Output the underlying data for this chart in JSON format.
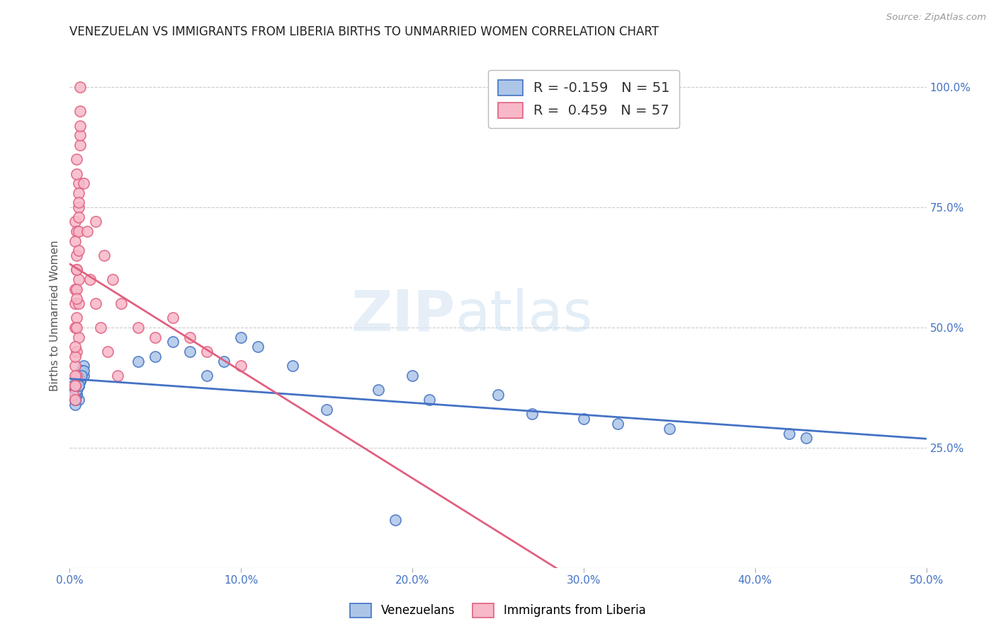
{
  "title": "VENEZUELAN VS IMMIGRANTS FROM LIBERIA BIRTHS TO UNMARRIED WOMEN CORRELATION CHART",
  "source": "Source: ZipAtlas.com",
  "ylabel": "Births to Unmarried Women",
  "watermark_zip": "ZIP",
  "watermark_atlas": "atlas",
  "blue_label": "Venezuelans",
  "pink_label": "Immigrants from Liberia",
  "blue_R": -0.159,
  "blue_N": 51,
  "pink_R": 0.459,
  "pink_N": 57,
  "blue_color": "#adc6e8",
  "pink_color": "#f7b8c8",
  "blue_line_color": "#4472c4",
  "pink_line_color": "#e06080",
  "xlim": [
    0.0,
    0.5
  ],
  "ylim": [
    0.0,
    1.05
  ],
  "xticks": [
    0.0,
    0.1,
    0.2,
    0.3,
    0.4,
    0.5
  ],
  "xtick_labels": [
    "0.0%",
    "10.0%",
    "20.0%",
    "30.0%",
    "40.0%",
    "50.0%"
  ],
  "yticks_right": [
    0.25,
    0.5,
    0.75,
    1.0
  ],
  "ytick_right_labels": [
    "25.0%",
    "50.0%",
    "75.0%",
    "100.0%"
  ],
  "background_color": "#ffffff",
  "grid_color": "#cccccc",
  "title_fontsize": 12,
  "axis_label_fontsize": 11,
  "tick_fontsize": 11,
  "blue_x": [
    0.003,
    0.005,
    0.002,
    0.008,
    0.004,
    0.006,
    0.003,
    0.007,
    0.005,
    0.004,
    0.006,
    0.003,
    0.008,
    0.005,
    0.004,
    0.006,
    0.003,
    0.007,
    0.005,
    0.004,
    0.006,
    0.003,
    0.008,
    0.005,
    0.003,
    0.006,
    0.004,
    0.007,
    0.005,
    0.003,
    0.04,
    0.05,
    0.06,
    0.08,
    0.07,
    0.09,
    0.1,
    0.11,
    0.13,
    0.15,
    0.18,
    0.2,
    0.21,
    0.25,
    0.27,
    0.3,
    0.32,
    0.35,
    0.42,
    0.43,
    0.19
  ],
  "blue_y": [
    0.37,
    0.35,
    0.38,
    0.4,
    0.36,
    0.39,
    0.34,
    0.41,
    0.38,
    0.37,
    0.4,
    0.36,
    0.42,
    0.38,
    0.37,
    0.39,
    0.35,
    0.41,
    0.38,
    0.36,
    0.39,
    0.37,
    0.41,
    0.38,
    0.36,
    0.39,
    0.37,
    0.4,
    0.38,
    0.35,
    0.43,
    0.44,
    0.47,
    0.4,
    0.45,
    0.43,
    0.48,
    0.46,
    0.42,
    0.33,
    0.37,
    0.4,
    0.35,
    0.36,
    0.32,
    0.31,
    0.3,
    0.29,
    0.28,
    0.27,
    0.1
  ],
  "pink_x": [
    0.002,
    0.003,
    0.004,
    0.005,
    0.003,
    0.004,
    0.005,
    0.003,
    0.006,
    0.004,
    0.003,
    0.005,
    0.004,
    0.003,
    0.006,
    0.004,
    0.005,
    0.003,
    0.004,
    0.005,
    0.004,
    0.003,
    0.005,
    0.004,
    0.003,
    0.006,
    0.004,
    0.005,
    0.003,
    0.004,
    0.005,
    0.003,
    0.006,
    0.004,
    0.003,
    0.005,
    0.004,
    0.006,
    0.003,
    0.005,
    0.015,
    0.02,
    0.025,
    0.03,
    0.04,
    0.05,
    0.06,
    0.07,
    0.08,
    0.1,
    0.008,
    0.01,
    0.012,
    0.015,
    0.018,
    0.022,
    0.028
  ],
  "pink_y": [
    0.36,
    0.72,
    0.45,
    0.8,
    0.5,
    0.85,
    0.6,
    0.55,
    0.95,
    0.65,
    0.38,
    0.48,
    0.7,
    0.58,
    1.0,
    0.62,
    0.75,
    0.42,
    0.82,
    0.55,
    0.4,
    0.68,
    0.78,
    0.52,
    0.35,
    0.88,
    0.62,
    0.73,
    0.44,
    0.58,
    0.66,
    0.4,
    0.9,
    0.56,
    0.38,
    0.76,
    0.5,
    0.92,
    0.46,
    0.7,
    0.72,
    0.65,
    0.6,
    0.55,
    0.5,
    0.48,
    0.52,
    0.48,
    0.45,
    0.42,
    0.8,
    0.7,
    0.6,
    0.55,
    0.5,
    0.45,
    0.4
  ]
}
